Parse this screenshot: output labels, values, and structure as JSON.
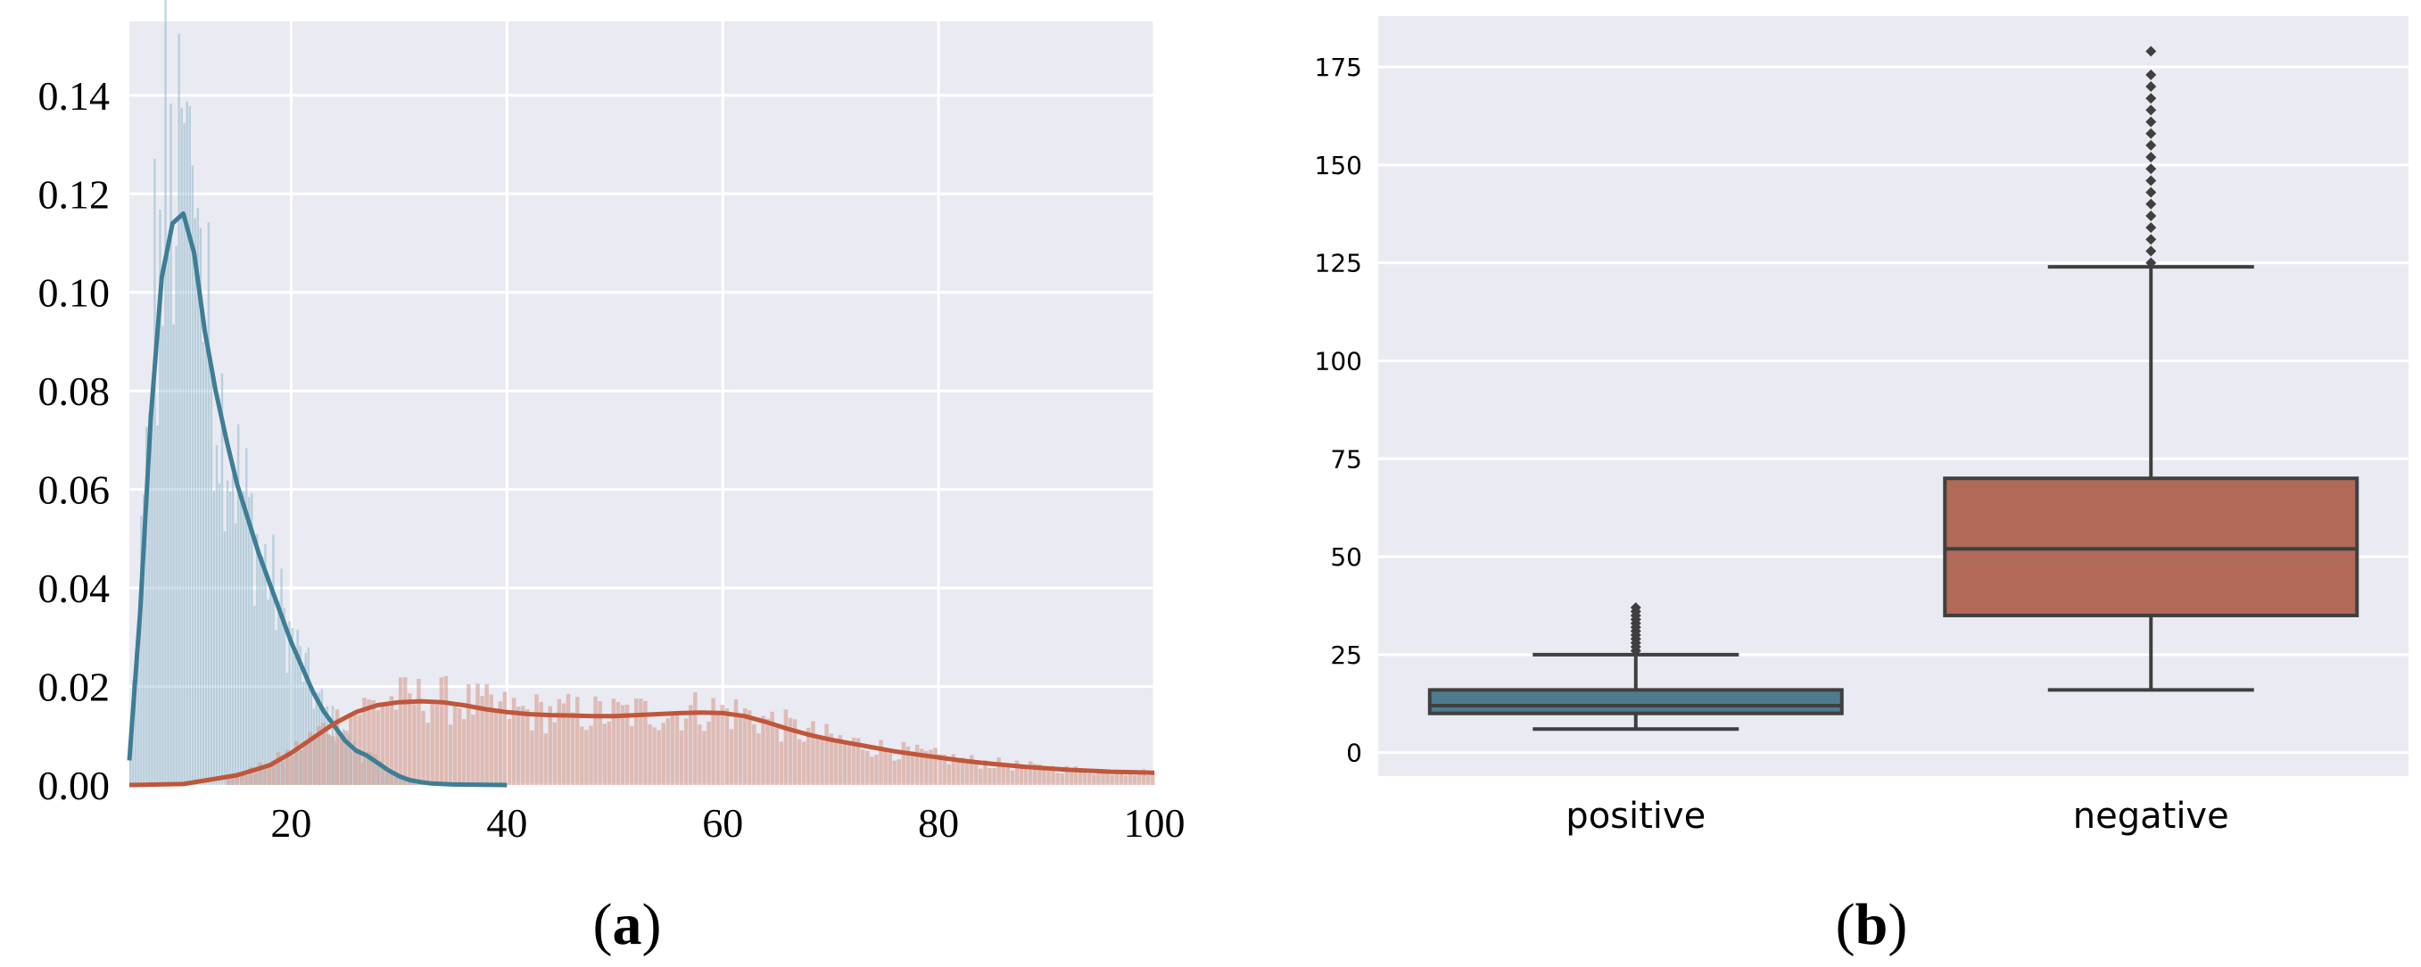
{
  "colors": {
    "plot_bg": "#EAEAF2",
    "grid": "#FFFFFF",
    "positive_line": "#3D7E95",
    "positive_fill": "#8FB8CB",
    "negative_line": "#C0563A",
    "negative_fill": "#D79E90",
    "box_positive": "#4E7B8E",
    "box_negative": "#B06A57",
    "box_edge": "#3F3F3F"
  },
  "captions": {
    "a_open": "(",
    "a_letter": "a",
    "a_close": ")",
    "b_open": "(",
    "b_letter": "b",
    "b_close": ")"
  },
  "chart_data": [
    {
      "id": "a",
      "type": "area",
      "grid": true,
      "xlim": [
        5,
        100
      ],
      "ylim": [
        0,
        0.155
      ],
      "xticks": [
        20,
        40,
        60,
        80,
        100
      ],
      "xtick_labels": [
        "20",
        "40",
        "60",
        "80",
        "100"
      ],
      "yticks": [
        0,
        0.02,
        0.04,
        0.06,
        0.08,
        0.1,
        0.12,
        0.14
      ],
      "ytick_labels": [
        "0.00",
        "0.02",
        "0.04",
        "0.06",
        "0.08",
        "0.10",
        "0.12",
        "0.14"
      ],
      "series": [
        {
          "key": "positive",
          "color": "#3D7E95",
          "hist_range": [
            5,
            40
          ],
          "kde": {
            "x": [
              5,
              6,
              7,
              8,
              9,
              10,
              11,
              12,
              13,
              14,
              15,
              16,
              17,
              18,
              19,
              20,
              21,
              22,
              23,
              24,
              25,
              26,
              27,
              28,
              29,
              30,
              31,
              32,
              33,
              35,
              40
            ],
            "y": [
              0.005,
              0.035,
              0.075,
              0.103,
              0.114,
              0.116,
              0.108,
              0.092,
              0.08,
              0.07,
              0.061,
              0.054,
              0.047,
              0.041,
              0.035,
              0.029,
              0.024,
              0.019,
              0.015,
              0.012,
              0.009,
              0.007,
              0.006,
              0.0045,
              0.003,
              0.0018,
              0.001,
              0.0006,
              0.0003,
              0.0001,
              0.0
            ]
          }
        },
        {
          "key": "negative",
          "color": "#C0563A",
          "hist_range": [
            14,
            100
          ],
          "kde": {
            "x": [
              5,
              10,
              15,
              18,
              20,
              22,
              24,
              26,
              28,
              30,
              32,
              34,
              36,
              38,
              40,
              42,
              44,
              46,
              48,
              50,
              52,
              54,
              56,
              58,
              60,
              62,
              64,
              66,
              68,
              70,
              72,
              74,
              76,
              78,
              80,
              82,
              84,
              86,
              88,
              90,
              92,
              94,
              96,
              98,
              100
            ],
            "y": [
              0.0,
              0.0002,
              0.002,
              0.004,
              0.0065,
              0.0095,
              0.0125,
              0.0148,
              0.0162,
              0.0168,
              0.017,
              0.0168,
              0.0162,
              0.0154,
              0.0148,
              0.0144,
              0.0142,
              0.0141,
              0.014,
              0.014,
              0.0142,
              0.0144,
              0.0146,
              0.0147,
              0.0146,
              0.014,
              0.0128,
              0.0114,
              0.0102,
              0.0092,
              0.0084,
              0.0076,
              0.0068,
              0.0062,
              0.0056,
              0.005,
              0.0045,
              0.0041,
              0.0037,
              0.0034,
              0.0031,
              0.0029,
              0.0027,
              0.0026,
              0.0025
            ]
          }
        }
      ]
    },
    {
      "id": "b",
      "type": "box",
      "grid": true,
      "ylim": [
        -6,
        188
      ],
      "yticks": [
        0,
        25,
        50,
        75,
        100,
        125,
        150,
        175
      ],
      "ytick_labels": [
        "0",
        "25",
        "50",
        "75",
        "100",
        "125",
        "150",
        "175"
      ],
      "categories": [
        "positive",
        "negative"
      ],
      "boxes": [
        {
          "category": "positive",
          "whisker_low": 6,
          "q1": 10,
          "median": 12,
          "q3": 16,
          "whisker_high": 25,
          "outliers": [
            26,
            27,
            28,
            29,
            30,
            31,
            32,
            33,
            34,
            35,
            36,
            37
          ]
        },
        {
          "category": "negative",
          "whisker_low": 16,
          "q1": 35,
          "median": 52,
          "q3": 70,
          "whisker_high": 124,
          "outliers": [
            125,
            128,
            131,
            134,
            137,
            140,
            143,
            146,
            149,
            152,
            155,
            158,
            161,
            164,
            167,
            170,
            173,
            179
          ]
        }
      ]
    }
  ]
}
